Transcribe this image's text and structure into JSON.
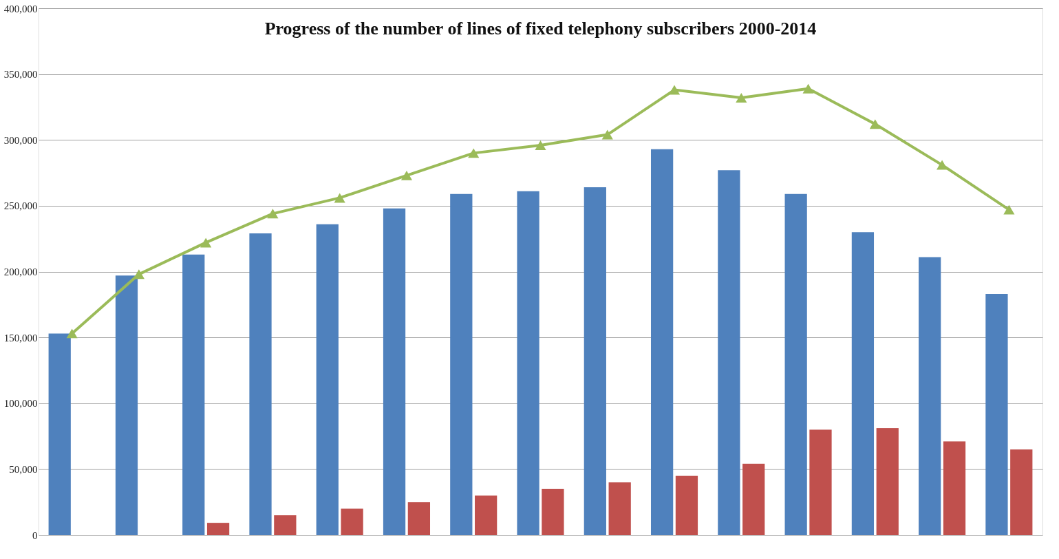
{
  "chart_data": {
    "type": "bar",
    "title": "Progress of the number of lines of fixed telephony subscribers 2000-2014",
    "categories": [
      null,
      null,
      null,
      null,
      null,
      null,
      null,
      null,
      null,
      null,
      null,
      null,
      null,
      null,
      null
    ],
    "series": [
      {
        "color": "#4f81bd",
        "values": [
          153000,
          197000,
          213000,
          229000,
          236000,
          248000,
          259000,
          261000,
          264000,
          293000,
          277000,
          259000,
          230000,
          211000,
          183000
        ]
      },
      {
        "color": "#c0504d",
        "values": [
          null,
          null,
          9000,
          15000,
          20000,
          25000,
          30000,
          35000,
          40000,
          45000,
          54000,
          80000,
          81000,
          71000,
          65000
        ]
      },
      {
        "type": "line",
        "color": "#9bbb59",
        "values": [
          153000,
          198000,
          222000,
          244000,
          256000,
          273000,
          290000,
          296000,
          304000,
          338000,
          332000,
          339000,
          312000,
          281000,
          247000
        ]
      }
    ],
    "ylim": [
      0,
      400000
    ],
    "yticks": [
      {
        "value": 0,
        "label": "0"
      },
      {
        "value": 50000,
        "label": "50,000"
      },
      {
        "value": 100000,
        "label": "100,000"
      },
      {
        "value": 150000,
        "label": "150,000"
      },
      {
        "value": 200000,
        "label": "200,000"
      },
      {
        "value": 250000,
        "label": "250,000"
      },
      {
        "value": 300000,
        "label": "300,000"
      },
      {
        "value": 350000,
        "label": "350,000"
      },
      {
        "value": 400000,
        "label": "400,000"
      }
    ],
    "grid": "y",
    "tick_labels": "y",
    "marker": "triangle"
  }
}
